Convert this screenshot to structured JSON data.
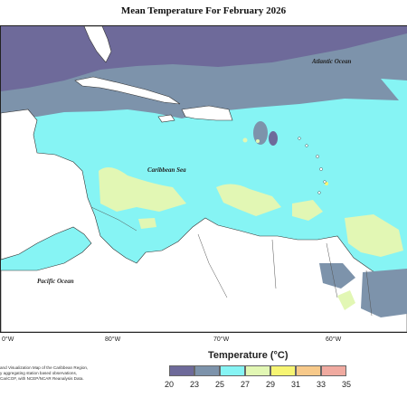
{
  "map": {
    "title": "Mean Temperature For February 2026",
    "labels": {
      "atlantic": "Atlantic Ocean",
      "caribbean": "Caribbean Sea",
      "pacific": "Pacific Ocean"
    },
    "longitudes": [
      "0°W",
      "80°W",
      "70°W",
      "60°W"
    ]
  },
  "legend": {
    "title": "Temperature (°C)",
    "ticks": [
      "20",
      "23",
      "25",
      "27",
      "29",
      "31",
      "33",
      "35"
    ],
    "colors": [
      "#6e6a9a",
      "#7d93ab",
      "#86f4f4",
      "#e2f7b4",
      "#f7f573",
      "#f7c98a",
      "#f0aaa0"
    ]
  },
  "footnote": {
    "line1": "and Visualization Map of the Caribbean Region,",
    "line2": "y aggregating station based observations,",
    "line3": "CariCOF, with NCEP/NCAR Reanalysis Data."
  },
  "palette": {
    "band_20_23": "#6e6a9a",
    "band_23_25": "#7d93ab",
    "band_25_27": "#86f4f4",
    "band_27_29": "#e2f7b4",
    "land": "#ffffff"
  }
}
